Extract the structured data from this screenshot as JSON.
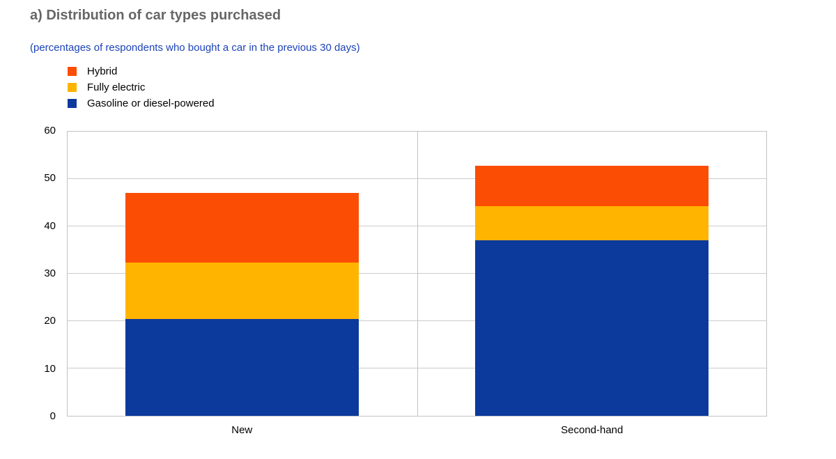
{
  "header": {
    "title": "a) Distribution of car types purchased",
    "subtitle": "(percentages of respondents who bought a car in the previous 30 days)"
  },
  "colors": {
    "title_text": "#666666",
    "subtitle_text": "#1c43b8",
    "axis_text": "#000000",
    "gridline": "#cccccc",
    "plot_border": "#c3c3c3",
    "hybrid": "#fc4d04",
    "fully_electric": "#ffb400",
    "gasoline_diesel": "#0b3a9c"
  },
  "legend": {
    "items": [
      {
        "label": "Hybrid",
        "color": "#fc4d04"
      },
      {
        "label": "Fully electric",
        "color": "#ffb400"
      },
      {
        "label": "Gasoline or diesel-powered",
        "color": "#0b3a9c"
      }
    ]
  },
  "chart_data": {
    "type": "bar",
    "stacked": true,
    "title": "a) Distribution of car types purchased",
    "subtitle": "(percentages of respondents who bought a car in the previous 30 days)",
    "categories": [
      "New",
      "Second-hand"
    ],
    "series": [
      {
        "name": "Gasoline or diesel-powered",
        "color": "#0b3a9c",
        "values": [
          20.4,
          37.0
        ]
      },
      {
        "name": "Fully electric",
        "color": "#ffb400",
        "values": [
          12.0,
          7.2
        ]
      },
      {
        "name": "Hybrid",
        "color": "#fc4d04",
        "values": [
          14.7,
          8.6
        ]
      }
    ],
    "stack_totals": [
      47.1,
      52.8
    ],
    "xlabel": "",
    "ylabel": "",
    "ylim": [
      0,
      60
    ],
    "yticks": [
      0,
      10,
      20,
      30,
      40,
      50,
      60
    ],
    "grid": "horizontal",
    "legend_position": "top-left",
    "panel_divider_between_categories": true
  }
}
